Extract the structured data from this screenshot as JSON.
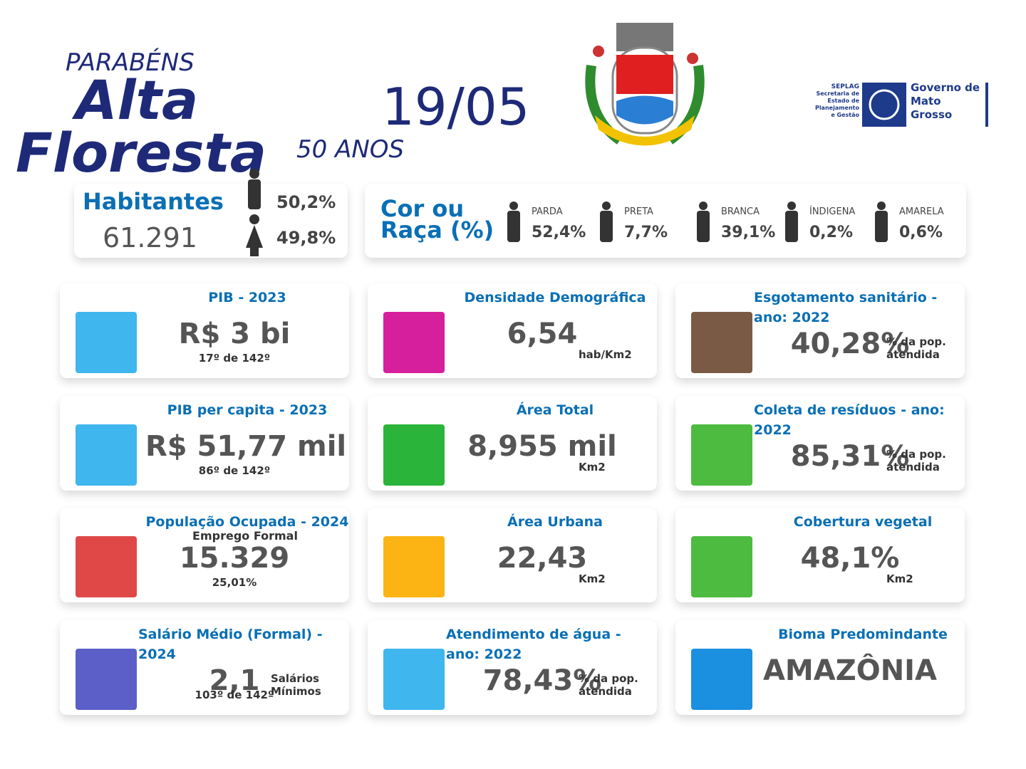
{
  "header": {
    "greeting": "PARABÉNS",
    "city": "Alta Floresta",
    "anniversary": "50 ANOS",
    "date": "19/05"
  },
  "government_logo": {
    "agency": "SEPLAG",
    "agency_name": "Secretaria de Estado de Planejamento e Gestão",
    "government": "Governo de Mato Grosso"
  },
  "population": {
    "label": "Habitantes",
    "value": "61.291",
    "male": "50,2%",
    "female": "49,8%"
  },
  "race": {
    "title": "Cor ou Raça (%)",
    "items": [
      {
        "label": "PARDA",
        "value": "52,4%"
      },
      {
        "label": "PRETA",
        "value": "7,7%"
      },
      {
        "label": "BRANCA",
        "value": "39,1%"
      },
      {
        "label": "ÍNDIGENA",
        "value": "0,2%"
      },
      {
        "label": "AMARELA",
        "value": "0,6%"
      }
    ]
  },
  "cards": [
    {
      "title": "PIB - 2023",
      "value": "R$ 3 bi",
      "sub": "17º de 142º",
      "color": "#3fb6ee"
    },
    {
      "title": "Densidade Demográfica",
      "value": "6,54",
      "unit": "hab/Km2",
      "color": "#d61f9c"
    },
    {
      "title": "Esgotamento sanitário - ano: 2022",
      "value": "40,28%",
      "unit": "% da pop. atendida",
      "color": "#7b5a45"
    },
    {
      "title": "PIB per capita - 2023",
      "value": "R$ 51,77 mil",
      "sub": "86º de 142º",
      "color": "#3fb6ee"
    },
    {
      "title": "Área Total",
      "value": "8,955 mil",
      "unit": "Km2",
      "color": "#2bb43a"
    },
    {
      "title": "Coleta de resíduos - ano: 2022",
      "value": "85,31%",
      "unit": "% da pop. atendida",
      "color": "#4cbb3f"
    },
    {
      "title": "População Ocupada - 2024",
      "note": "Emprego Formal",
      "value": "15.329",
      "sub": "25,01%",
      "color": "#e04848"
    },
    {
      "title": "Área Urbana",
      "value": "22,43",
      "unit": "Km2",
      "color": "#fbb413"
    },
    {
      "title": "Cobertura vegetal",
      "value": "48,1%",
      "unit": "Km2",
      "color": "#4cbb3f"
    },
    {
      "title": "Salário Médio (Formal) - 2024",
      "value": "2,1",
      "unit": "Salários Mínimos",
      "sub": "103º de 142º",
      "color": "#5b5fc7"
    },
    {
      "title": "Atendimento de água - ano: 2022",
      "value": "78,43%",
      "unit": "% da pop. atendida",
      "color": "#3fb6ee"
    },
    {
      "title": "Bioma Predomindante",
      "value": "AMAZÔNIA",
      "color": "#1b8fe0"
    }
  ]
}
